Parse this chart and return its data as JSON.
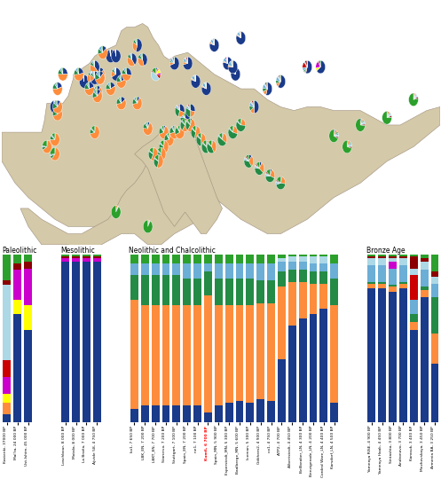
{
  "bar_colors": [
    "#1a3a8a",
    "#fd8d3c",
    "#238b45",
    "#6baed6",
    "#ffff00",
    "#cc00cc",
    "#cc0000",
    "#add8e6",
    "#8b0000",
    "#2ca02c"
  ],
  "paleolithic": {
    "labels": [
      "Kostenki, 37000 BP",
      "Mal'ta, 24 000 BP",
      "Ust-Ishim, 45 000 BP"
    ],
    "bars": [
      [
        0.05,
        0.07,
        0.0,
        0.0,
        0.05,
        0.1,
        0.1,
        0.45,
        0.03,
        0.15
      ],
      [
        0.65,
        0.0,
        0.0,
        0.0,
        0.08,
        0.18,
        0.0,
        0.0,
        0.04,
        0.05
      ],
      [
        0.55,
        0.0,
        0.0,
        0.0,
        0.15,
        0.22,
        0.0,
        0.0,
        0.04,
        0.04
      ]
    ]
  },
  "mesolithic": {
    "labels": [
      "Loschbour, 8 000 BP",
      "Motala, 8 000 BP",
      "La Braña, 7 000 BP",
      "Ajvide 58, 4 750 BP"
    ],
    "bars": [
      [
        0.96,
        0.0,
        0.0,
        0.0,
        0.0,
        0.02,
        0.0,
        0.0,
        0.01,
        0.01
      ],
      [
        0.96,
        0.0,
        0.0,
        0.0,
        0.0,
        0.02,
        0.0,
        0.0,
        0.01,
        0.01
      ],
      [
        0.96,
        0.0,
        0.0,
        0.0,
        0.0,
        0.02,
        0.0,
        0.0,
        0.01,
        0.01
      ],
      [
        0.96,
        0.0,
        0.0,
        0.0,
        0.0,
        0.02,
        0.0,
        0.0,
        0.01,
        0.01
      ]
    ]
  },
  "neolithic": {
    "labels": [
      "ko1, 7 650 BP",
      "LBK_EN, 7 200 BP",
      "LBKT_EN, 7 700 BP",
      "Starcevo, 7 200 BP",
      "Stuttgart, 7 100 BP",
      "Spain_EN, 7 200 BP",
      "ne1, 7 100 BP",
      "Kum6, 6 700 BP",
      "Spain_MN, 5 900 BP",
      "Esperstedt_MN, 5 300 BP",
      "Baalberge_MN, 5 600 BP",
      "Iceman, 5 300 BP",
      "Gökhem2, 4 900 BP",
      "co1, 4 750 BP",
      "ATP2, 4 700 BP",
      "Albertstedt, 4 450 BP",
      "Bellbeaker_LN, 4 300 BP",
      "Benzigerode_LN, 4 200 BP",
      "Corded Ware_LN, 4 400 BP",
      "Karsdorf_LN, 4 500 BP"
    ],
    "bars": [
      [
        0.08,
        0.65,
        0.15,
        0.07,
        0.0,
        0.0,
        0.0,
        0.0,
        0.0,
        0.05
      ],
      [
        0.1,
        0.6,
        0.18,
        0.07,
        0.0,
        0.0,
        0.0,
        0.0,
        0.0,
        0.05
      ],
      [
        0.1,
        0.6,
        0.18,
        0.07,
        0.0,
        0.0,
        0.0,
        0.0,
        0.0,
        0.05
      ],
      [
        0.1,
        0.6,
        0.18,
        0.07,
        0.0,
        0.0,
        0.0,
        0.0,
        0.0,
        0.05
      ],
      [
        0.1,
        0.6,
        0.18,
        0.07,
        0.0,
        0.0,
        0.0,
        0.0,
        0.0,
        0.05
      ],
      [
        0.1,
        0.6,
        0.16,
        0.09,
        0.0,
        0.0,
        0.0,
        0.0,
        0.0,
        0.05
      ],
      [
        0.1,
        0.6,
        0.16,
        0.09,
        0.0,
        0.0,
        0.0,
        0.0,
        0.0,
        0.05
      ],
      [
        0.06,
        0.7,
        0.14,
        0.05,
        0.0,
        0.0,
        0.0,
        0.0,
        0.0,
        0.05
      ],
      [
        0.1,
        0.6,
        0.16,
        0.09,
        0.0,
        0.0,
        0.0,
        0.0,
        0.0,
        0.05
      ],
      [
        0.12,
        0.58,
        0.16,
        0.09,
        0.0,
        0.0,
        0.0,
        0.0,
        0.0,
        0.05
      ],
      [
        0.13,
        0.57,
        0.16,
        0.09,
        0.0,
        0.0,
        0.0,
        0.0,
        0.0,
        0.05
      ],
      [
        0.12,
        0.58,
        0.16,
        0.09,
        0.0,
        0.0,
        0.0,
        0.0,
        0.0,
        0.05
      ],
      [
        0.14,
        0.57,
        0.14,
        0.1,
        0.0,
        0.0,
        0.0,
        0.0,
        0.0,
        0.05
      ],
      [
        0.13,
        0.58,
        0.14,
        0.1,
        0.0,
        0.0,
        0.0,
        0.0,
        0.0,
        0.05
      ],
      [
        0.38,
        0.43,
        0.09,
        0.06,
        0.0,
        0.0,
        0.0,
        0.02,
        0.0,
        0.02
      ],
      [
        0.58,
        0.26,
        0.07,
        0.05,
        0.0,
        0.0,
        0.0,
        0.03,
        0.0,
        0.01
      ],
      [
        0.62,
        0.22,
        0.07,
        0.05,
        0.0,
        0.0,
        0.0,
        0.03,
        0.0,
        0.01
      ],
      [
        0.65,
        0.18,
        0.07,
        0.05,
        0.0,
        0.0,
        0.0,
        0.04,
        0.0,
        0.01
      ],
      [
        0.68,
        0.15,
        0.07,
        0.05,
        0.0,
        0.0,
        0.0,
        0.04,
        0.0,
        0.01
      ],
      [
        0.12,
        0.58,
        0.16,
        0.09,
        0.0,
        0.0,
        0.0,
        0.0,
        0.0,
        0.05
      ]
    ],
    "highlight_idx": 7,
    "highlight_color": "red"
  },
  "bronze": {
    "labels": [
      "Yamnaya RISE, 4 900 BP",
      "Yamnaya Haak, 4 450 BP",
      "Sintashta, 3 800 BP",
      "Andronovo, 3 700 BP",
      "Karasuk, 3 400 BP",
      "Mezhovskaya, 3 450 BP",
      "Armenia BA, 3 250 BP"
    ],
    "bars": [
      [
        0.8,
        0.03,
        0.01,
        0.1,
        0.0,
        0.0,
        0.0,
        0.04,
        0.01,
        0.01
      ],
      [
        0.8,
        0.03,
        0.01,
        0.1,
        0.0,
        0.0,
        0.0,
        0.04,
        0.01,
        0.01
      ],
      [
        0.78,
        0.03,
        0.01,
        0.1,
        0.0,
        0.04,
        0.0,
        0.02,
        0.01,
        0.01
      ],
      [
        0.8,
        0.03,
        0.01,
        0.1,
        0.0,
        0.0,
        0.0,
        0.04,
        0.01,
        0.01
      ],
      [
        0.55,
        0.05,
        0.05,
        0.08,
        0.0,
        0.0,
        0.15,
        0.04,
        0.07,
        0.01
      ],
      [
        0.75,
        0.04,
        0.02,
        0.1,
        0.0,
        0.0,
        0.0,
        0.05,
        0.02,
        0.02
      ],
      [
        0.35,
        0.18,
        0.22,
        0.08,
        0.0,
        0.0,
        0.0,
        0.04,
        0.03,
        0.1
      ]
    ]
  },
  "map_bg": "#e8e0d0",
  "section_titles": [
    "Paleolithic",
    "Mesolithic",
    "Neolithic and Chalcolithic",
    "Bronze Age"
  ]
}
